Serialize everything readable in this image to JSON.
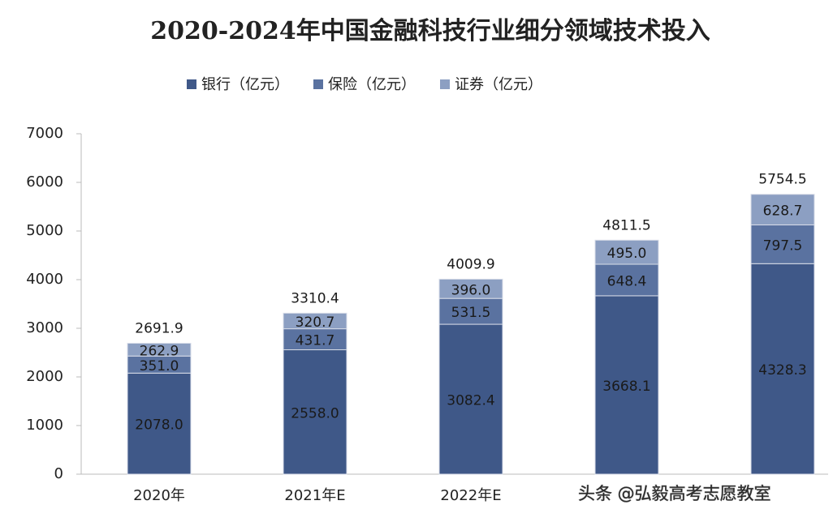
{
  "chart_data": {
    "type": "stacked-bar",
    "title": "2020-2024年中国金融科技行业细分领域技术投入",
    "categories": [
      "2020年",
      "2021年E",
      "2022年E",
      null,
      null
    ],
    "series": [
      {
        "name": "银行（亿元）",
        "color": "#3f5888",
        "values": [
          2078.0,
          2558.0,
          3082.4,
          3668.1,
          4328.3
        ],
        "value_labels": [
          "2078.0",
          "2558.0",
          "3082.4",
          "3668.1",
          "4328.3"
        ]
      },
      {
        "name": "保险（亿元）",
        "color": "#5a72a0",
        "values": [
          351.0,
          431.7,
          531.5,
          648.4,
          797.5
        ],
        "value_labels": [
          "351.0",
          "431.7",
          "531.5",
          "648.4",
          "797.5"
        ]
      },
      {
        "name": "证券（亿元）",
        "color": "#8c9fc2",
        "values": [
          262.9,
          320.7,
          396.0,
          495.0,
          628.7
        ],
        "value_labels": [
          "262.9",
          "320.7",
          "396.0",
          "495.0",
          "628.7"
        ]
      }
    ],
    "totals": [
      2691.9,
      3310.4,
      4009.9,
      4811.5,
      5754.5
    ],
    "ylim": [
      0,
      7000
    ],
    "yticks": [
      0,
      1000,
      2000,
      3000,
      4000,
      5000,
      6000,
      7000
    ],
    "grid": false,
    "watermark": "头条 @弘毅高考志愿教室"
  }
}
